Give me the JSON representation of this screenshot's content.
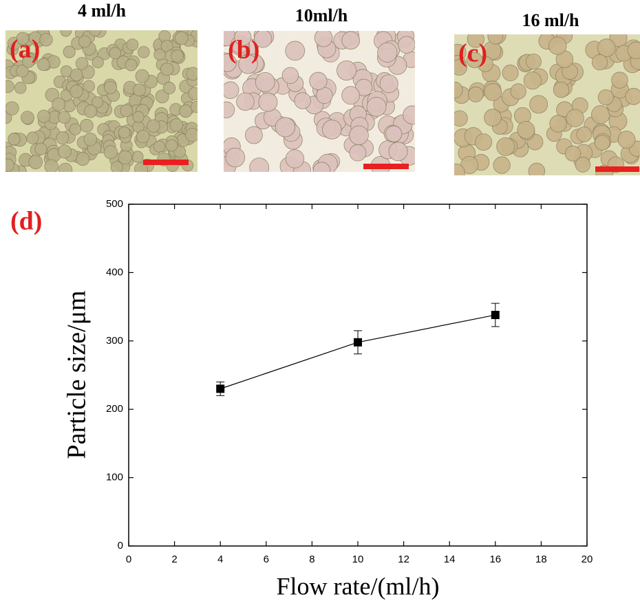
{
  "panels": [
    {
      "label": "(a)",
      "title": "4 ml/h"
    },
    {
      "label": "(b)",
      "title": "10ml/h"
    },
    {
      "label": "(c)",
      "title": "16 ml/h"
    }
  ],
  "chart_data": {
    "type": "line",
    "panel_label": "(d)",
    "xlabel": "Flow rate/(ml/h)",
    "ylabel": "Particle size/μm",
    "x": [
      4,
      10,
      16
    ],
    "series": [
      {
        "color": "#000000",
        "values": [
          230,
          298,
          338
        ],
        "errors": [
          10,
          17,
          17
        ]
      }
    ],
    "xlim": [
      0,
      20
    ],
    "xticks": [
      0,
      2,
      4,
      6,
      8,
      10,
      12,
      14,
      16,
      18,
      20
    ],
    "ylim": [
      0,
      500
    ],
    "yticks": [
      0,
      100,
      200,
      300,
      400,
      500
    ]
  }
}
